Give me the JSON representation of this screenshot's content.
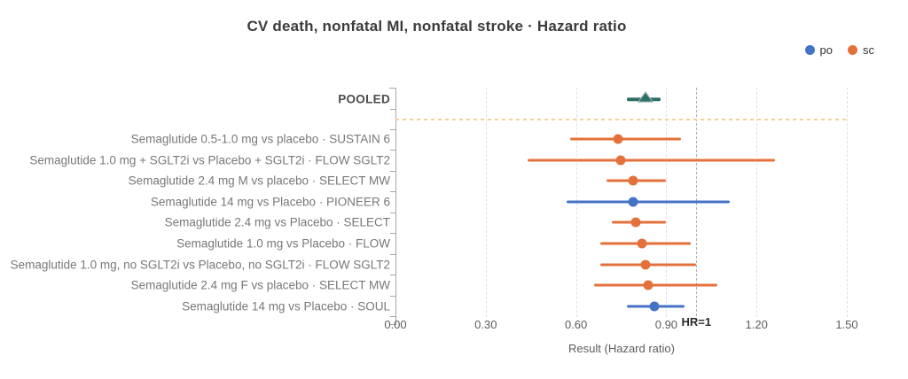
{
  "title": "CV death, nonfatal MI, nonfatal stroke · Hazard ratio",
  "legend": [
    {
      "label": "po",
      "color": "#4472C4"
    },
    {
      "label": "sc",
      "color": "#E4713B"
    }
  ],
  "chart_data": {
    "type": "forest",
    "title": "CV death, nonfatal MI, nonfatal stroke · Hazard ratio",
    "xlabel": "Result (Hazard ratio)",
    "xlim": [
      0.0,
      1.55
    ],
    "x_ticks": [
      0.0,
      0.3,
      0.6,
      0.9,
      1.2,
      1.5
    ],
    "x_tick_labels": [
      "0.00",
      "0.30",
      "0.60",
      "0.90",
      "1.20",
      "1.50"
    ],
    "grid": "vertical-dashed",
    "reference_line": {
      "x": 1.0,
      "label": "HR=1"
    },
    "pooled": {
      "label": "POOLED",
      "hr": 0.83,
      "ci_low": 0.77,
      "ci_high": 0.88,
      "marker": "triangle",
      "color": "#2F6E69"
    },
    "rows": [
      {
        "label": "Semaglutide 0.5-1.0 mg vs placebo · SUSTAIN 6",
        "group": "sc",
        "hr": 0.74,
        "ci_low": 0.58,
        "ci_high": 0.95
      },
      {
        "label": "Semaglutide 1.0 mg + SGLT2i vs Placebo + SGLT2i · FLOW SGLT2",
        "group": "sc",
        "hr": 0.75,
        "ci_low": 0.44,
        "ci_high": 1.26
      },
      {
        "label": "Semaglutide 2.4 mg M vs placebo · SELECT MW",
        "group": "sc",
        "hr": 0.79,
        "ci_low": 0.7,
        "ci_high": 0.9
      },
      {
        "label": "Semaglutide 14 mg vs Placebo · PIONEER 6",
        "group": "po",
        "hr": 0.79,
        "ci_low": 0.57,
        "ci_high": 1.11
      },
      {
        "label": "Semaglutide 2.4 mg vs Placebo · SELECT",
        "group": "sc",
        "hr": 0.8,
        "ci_low": 0.72,
        "ci_high": 0.9
      },
      {
        "label": "Semaglutide 1.0 mg vs Placebo · FLOW",
        "group": "sc",
        "hr": 0.82,
        "ci_low": 0.68,
        "ci_high": 0.98
      },
      {
        "label": "Semaglutide 1.0 mg, no SGLT2i vs Placebo, no SGLT2i · FLOW SGLT2",
        "group": "sc",
        "hr": 0.83,
        "ci_low": 0.68,
        "ci_high": 1.0
      },
      {
        "label": "Semaglutide 2.4 mg F vs placebo · SELECT MW",
        "group": "sc",
        "hr": 0.84,
        "ci_low": 0.66,
        "ci_high": 1.07
      },
      {
        "label": "Semaglutide 14 mg vs Placebo · SOUL",
        "group": "po",
        "hr": 0.86,
        "ci_low": 0.77,
        "ci_high": 0.96
      }
    ],
    "colors": {
      "po": "#4472C4",
      "sc": "#E4713B",
      "pooled": "#2F6E69",
      "pooled_edge": "#8FB0AB",
      "separator": "#F3D094",
      "gridline": "#DEDEEB",
      "reference": "#A9B0C0",
      "axis": "#A6A6A6"
    },
    "legend_position": "top-right"
  }
}
